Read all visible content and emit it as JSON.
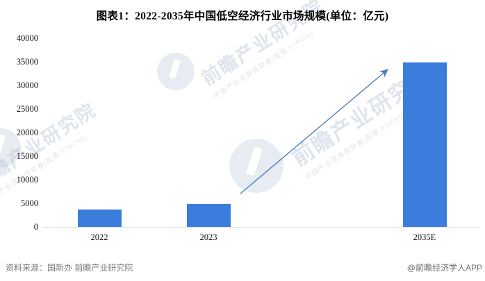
{
  "chart_data": {
    "type": "bar",
    "title": "图表1：2022-2035年中国低空经济行业市场规模(单位：亿元)",
    "categories": [
      "2022",
      "2023",
      "2035E"
    ],
    "values": [
      3800,
      5000,
      35000
    ],
    "xlabel": "",
    "ylabel": "",
    "ylim": [
      0,
      40000
    ],
    "yticks": [
      0,
      5000,
      10000,
      15000,
      20000,
      25000,
      30000,
      35000,
      40000
    ],
    "grid": false,
    "legend": "none",
    "bar_color": "#3b7ddd",
    "annotation": {
      "type": "growth-arrow",
      "color": "#4a7fc0",
      "from_category": "2023",
      "to_category": "2035E"
    }
  },
  "watermark": {
    "text": "前瞻产业研究院",
    "subtext": "中国产业咨询领导者(股票:839599)"
  },
  "footer": {
    "source": "资料来源：国新办 前瞻产业研究院",
    "credit": "@前瞻经济学人APP"
  }
}
